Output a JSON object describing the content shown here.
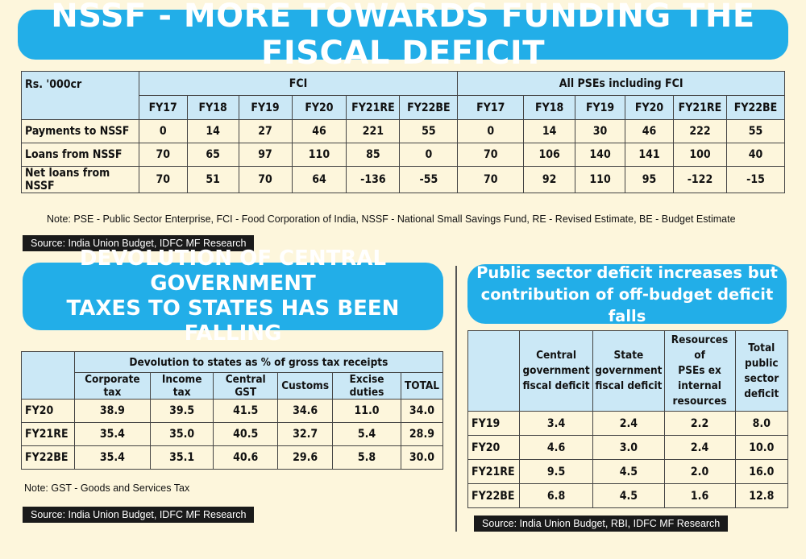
{
  "banner1": "NSSF - MORE TOWARDS FUNDING THE FISCAL DEFICIT",
  "banner2": {
    "line1": "DEVOLUTION OF CENTRAL GOVERNMENT",
    "line2": "TAXES TO STATES HAS BEEN FALLING"
  },
  "banner3": {
    "line1": "Public sector deficit increases but",
    "line2": "contribution of off-budget deficit falls"
  },
  "table1": {
    "corner": "Rs. '000cr",
    "group1": "FCI",
    "group2": "All PSEs including FCI",
    "years": [
      "FY17",
      "FY18",
      "FY19",
      "FY20",
      "FY21RE",
      "FY22BE"
    ],
    "rows": [
      {
        "label": "Payments to NSSF",
        "values": [
          "0",
          "14",
          "27",
          "46",
          "221",
          "55",
          "0",
          "14",
          "30",
          "46",
          "222",
          "55"
        ]
      },
      {
        "label": "Loans from NSSF",
        "values": [
          "70",
          "65",
          "97",
          "110",
          "85",
          "0",
          "70",
          "106",
          "140",
          "141",
          "100",
          "40"
        ]
      },
      {
        "label": "Net loans from NSSF",
        "values": [
          "70",
          "51",
          "70",
          "64",
          "-136",
          "-55",
          "70",
          "92",
          "110",
          "95",
          "-122",
          "-15"
        ]
      }
    ],
    "note": "Note: PSE - Public Sector Enterprise, FCI - Food Corporation of India, NSSF - National Small Savings Fund, RE - Revised Estimate, BE - Budget Estimate",
    "source": "Source: India Union Budget, IDFC MF Research"
  },
  "table2": {
    "group": "Devolution to states as % of gross tax receipts",
    "columns": [
      "Corporate tax",
      "Income tax",
      "Central GST",
      "Customs",
      "Excise duties",
      "TOTAL"
    ],
    "rows": [
      {
        "label": "FY20",
        "values": [
          "38.9",
          "39.5",
          "41.5",
          "34.6",
          "11.0",
          "34.0"
        ]
      },
      {
        "label": "FY21RE",
        "values": [
          "35.4",
          "35.0",
          "40.5",
          "32.7",
          "5.4",
          "28.9"
        ]
      },
      {
        "label": "FY22BE",
        "values": [
          "35.4",
          "35.1",
          "40.6",
          "29.6",
          "5.8",
          "30.0"
        ]
      }
    ],
    "note": "Note: GST - Goods and Services Tax",
    "source": "Source: India Union Budget, IDFC MF Research"
  },
  "table3": {
    "columns": [
      [
        "Central",
        "government",
        "fiscal deficit"
      ],
      [
        "State",
        "government",
        "fiscal deficit"
      ],
      [
        "Resources of",
        "PSEs ex",
        "internal",
        "resources"
      ],
      [
        "Total",
        "public",
        "sector",
        "deficit"
      ]
    ],
    "rows": [
      {
        "label": "FY19",
        "values": [
          "3.4",
          "2.4",
          "2.2",
          "8.0"
        ]
      },
      {
        "label": "FY20",
        "values": [
          "4.6",
          "3.0",
          "2.4",
          "10.0"
        ]
      },
      {
        "label": "FY21RE",
        "values": [
          "9.5",
          "4.5",
          "2.0",
          "16.0"
        ]
      },
      {
        "label": "FY22BE",
        "values": [
          "6.8",
          "4.5",
          "1.6",
          "12.8"
        ]
      }
    ],
    "source": "Source: India Union Budget, RBI, IDFC MF Research"
  }
}
